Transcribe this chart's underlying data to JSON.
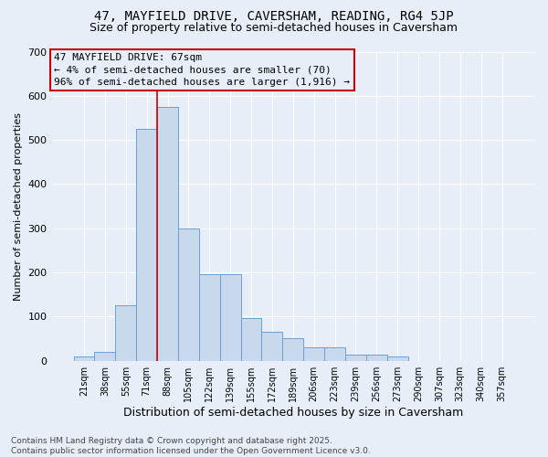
{
  "title1": "47, MAYFIELD DRIVE, CAVERSHAM, READING, RG4 5JP",
  "title2": "Size of property relative to semi-detached houses in Caversham",
  "xlabel": "Distribution of semi-detached houses by size in Caversham",
  "ylabel": "Number of semi-detached properties",
  "categories": [
    "21sqm",
    "38sqm",
    "55sqm",
    "71sqm",
    "88sqm",
    "105sqm",
    "122sqm",
    "139sqm",
    "155sqm",
    "172sqm",
    "189sqm",
    "206sqm",
    "223sqm",
    "239sqm",
    "256sqm",
    "273sqm",
    "290sqm",
    "307sqm",
    "323sqm",
    "340sqm",
    "357sqm"
  ],
  "values": [
    10,
    20,
    125,
    525,
    575,
    300,
    195,
    195,
    97,
    65,
    52,
    30,
    30,
    14,
    14,
    9,
    0,
    0,
    0,
    0,
    0
  ],
  "bar_color": "#c9d9ed",
  "bar_edge_color": "#6b9fd4",
  "vline_x_idx": 3,
  "vline_color": "#cc0000",
  "annotation_line1": "47 MAYFIELD DRIVE: 67sqm",
  "annotation_line2": "← 4% of semi-detached houses are smaller (70)",
  "annotation_line3": "96% of semi-detached houses are larger (1,916) →",
  "annotation_box_edgecolor": "#cc0000",
  "footer_text": "Contains HM Land Registry data © Crown copyright and database right 2025.\nContains public sector information licensed under the Open Government Licence v3.0.",
  "ylim": [
    0,
    700
  ],
  "yticks": [
    0,
    100,
    200,
    300,
    400,
    500,
    600,
    700
  ],
  "bg_color": "#e8eef8",
  "grid_color": "#ffffff",
  "title1_fontsize": 10,
  "title2_fontsize": 9,
  "annotation_fontsize": 8,
  "ylabel_fontsize": 8,
  "xlabel_fontsize": 9,
  "tick_fontsize": 7,
  "footer_fontsize": 6.5
}
